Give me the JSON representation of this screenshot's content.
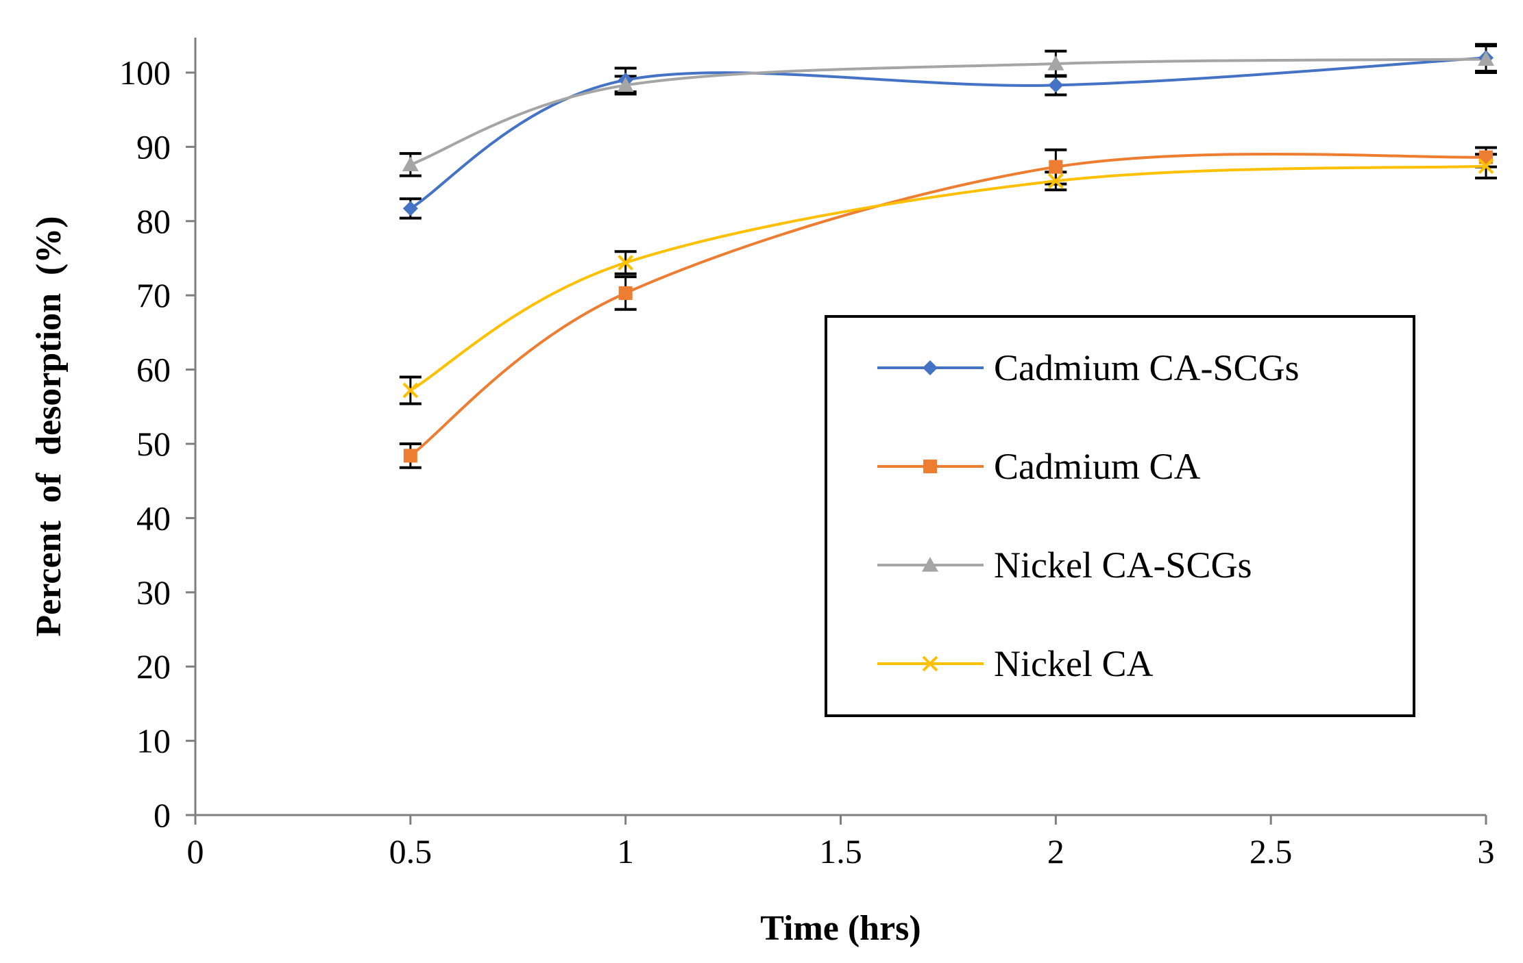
{
  "chart_data": {
    "type": "line",
    "title": "",
    "xlabel": "Time (hrs)",
    "ylabel": "Percent  of  desorption  (%)",
    "xlim": [
      0,
      3
    ],
    "ylim": [
      0,
      105
    ],
    "xticks": [
      0,
      0.5,
      1,
      1.5,
      2,
      2.5,
      3
    ],
    "xtick_labels": [
      "0",
      "0.5",
      "1",
      "1.5",
      "2",
      "2.5",
      "3"
    ],
    "yticks": [
      0,
      10,
      20,
      30,
      40,
      50,
      60,
      70,
      80,
      90,
      100
    ],
    "ytick_labels": [
      "0",
      "10",
      "20",
      "30",
      "40",
      "50",
      "60",
      "70",
      "80",
      "90",
      "100"
    ],
    "grid": false,
    "smooth": true,
    "legend_position": "center-right",
    "x": [
      0.5,
      1,
      2,
      3
    ],
    "series": [
      {
        "name": "Cadmium CA-SCGs",
        "color": "#4472C4",
        "marker": "diamond",
        "values": [
          81.7,
          99.0,
          98.3,
          102.0
        ],
        "errors": [
          1.3,
          1.6,
          1.3,
          1.8
        ]
      },
      {
        "name": "Cadmium CA",
        "color": "#ED7D31",
        "marker": "square",
        "values": [
          48.4,
          70.3,
          87.3,
          88.6
        ],
        "errors": [
          1.6,
          2.2,
          2.3,
          1.3
        ]
      },
      {
        "name": "Nickel CA-SCGs",
        "color": "#A5A5A5",
        "marker": "triangle",
        "values": [
          87.6,
          98.3,
          101.2,
          101.8
        ],
        "errors": [
          1.5,
          1.2,
          1.7,
          1.8
        ]
      },
      {
        "name": "Nickel CA",
        "color": "#FFC000",
        "marker": "x",
        "values": [
          57.2,
          74.4,
          85.4,
          87.4
        ],
        "errors": [
          1.8,
          1.5,
          1.2,
          1.6
        ]
      }
    ]
  }
}
